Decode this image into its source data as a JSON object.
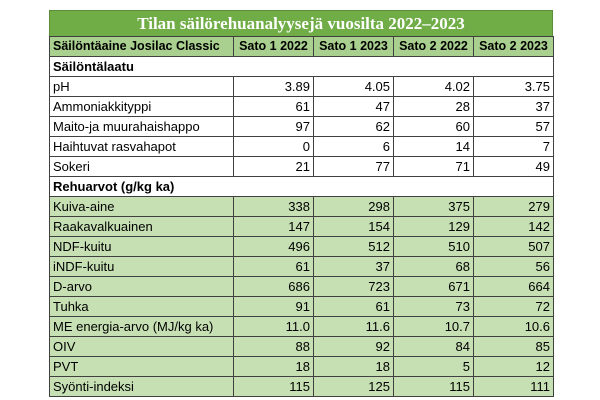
{
  "title": "Tilan säilörehuanalyysejä vuosilta 2022–2023",
  "columns": [
    "Säilöntäaine Josilac Classic",
    "Sato 1 2022",
    "Sato 1 2023",
    "Sato 2 2022",
    "Sato 2 2023"
  ],
  "sections": [
    {
      "heading": "Säilöntälaatu",
      "style": "white",
      "rows": [
        {
          "label": "pH",
          "values": [
            "3.89",
            "4.05",
            "4.02",
            "3.75"
          ]
        },
        {
          "label": "Ammoniakkityppi",
          "values": [
            "61",
            "47",
            "28",
            "37"
          ]
        },
        {
          "label": "Maito-ja muurahaishappo",
          "values": [
            "97",
            "62",
            "60",
            "57"
          ]
        },
        {
          "label": "Haihtuvat rasvahapot",
          "values": [
            "0",
            "6",
            "14",
            "7"
          ]
        },
        {
          "label": "Sokeri",
          "values": [
            "21",
            "77",
            "71",
            "49"
          ]
        }
      ]
    },
    {
      "heading": "Rehuarvot (g/kg ka)",
      "style": "green",
      "rows": [
        {
          "label": "Kuiva-aine",
          "values": [
            "338",
            "298",
            "375",
            "279"
          ]
        },
        {
          "label": "Raakavalkuainen",
          "values": [
            "147",
            "154",
            "129",
            "142"
          ]
        },
        {
          "label": "NDF-kuitu",
          "values": [
            "496",
            "512",
            "510",
            "507"
          ]
        },
        {
          "label": "iNDF-kuitu",
          "values": [
            "61",
            "37",
            "68",
            "56"
          ]
        },
        {
          "label": "D-arvo",
          "values": [
            "686",
            "723",
            "671",
            "664"
          ]
        },
        {
          "label": "Tuhka",
          "values": [
            "91",
            "61",
            "73",
            "72"
          ]
        },
        {
          "label": "ME energia-arvo (MJ/kg ka)",
          "values": [
            "11.0",
            "11.6",
            "10.7",
            "10.6"
          ]
        },
        {
          "label": "OIV",
          "values": [
            "88",
            "92",
            "84",
            "85"
          ]
        },
        {
          "label": "PVT",
          "values": [
            "18",
            "18",
            "5",
            "12"
          ]
        },
        {
          "label": "Syönti-indeksi",
          "values": [
            "115",
            "125",
            "115",
            "111"
          ]
        }
      ]
    }
  ]
}
